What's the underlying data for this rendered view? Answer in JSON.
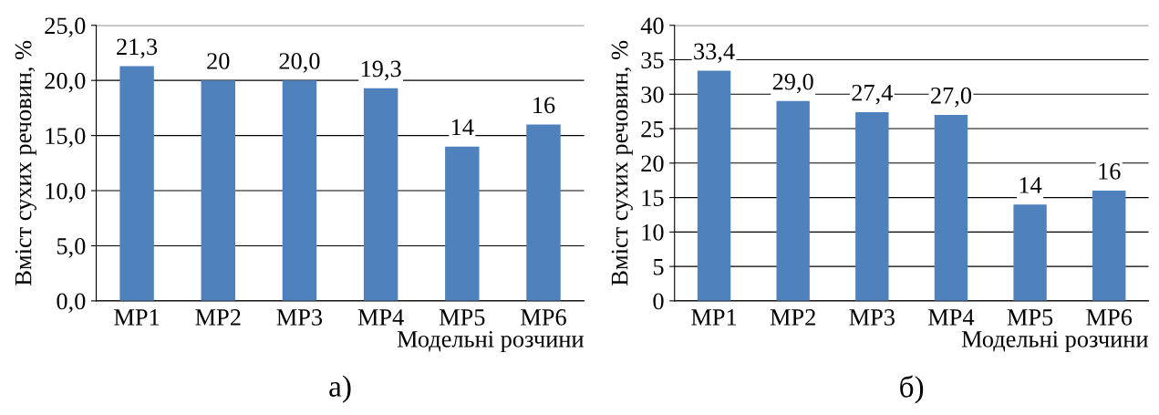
{
  "chart_data": [
    {
      "type": "bar",
      "categories": [
        "MP1",
        "MP2",
        "MP3",
        "MP4",
        "MP5",
        "MP6"
      ],
      "values": [
        21.3,
        20,
        20.0,
        19.3,
        14,
        16
      ],
      "value_labels": [
        "21,3",
        "20",
        "20,0",
        "19,3",
        "14",
        "16"
      ],
      "color": "#4f81bd",
      "xlabel": "Модельні розчини",
      "ylabel": "Вміст сухих речовин, %",
      "ylim": [
        0,
        25
      ],
      "yticks": [
        {
          "value": 0,
          "label": "0,0"
        },
        {
          "value": 5,
          "label": "5,0"
        },
        {
          "value": 10,
          "label": "10,0"
        },
        {
          "value": 15,
          "label": "15,0"
        },
        {
          "value": 20,
          "label": "20,0"
        },
        {
          "value": 25,
          "label": "25,0"
        }
      ],
      "grid": "y",
      "annotations": [
        "а)"
      ]
    },
    {
      "type": "bar",
      "categories": [
        "MP1",
        "MP2",
        "MP3",
        "MP4",
        "MP5",
        "MP6"
      ],
      "values": [
        33.4,
        29.0,
        27.4,
        27.0,
        14,
        16
      ],
      "value_labels": [
        "33,4",
        "29,0",
        "27,4",
        "27,0",
        "14",
        "16"
      ],
      "color": "#4f81bd",
      "xlabel": "Модельні розчини",
      "ylabel": "Вміст сухих речовин, %",
      "ylim": [
        0,
        40
      ],
      "yticks": [
        0,
        5,
        10,
        15,
        20,
        25,
        30,
        35,
        40
      ],
      "grid": "y",
      "annotations": [
        "б)"
      ]
    }
  ]
}
